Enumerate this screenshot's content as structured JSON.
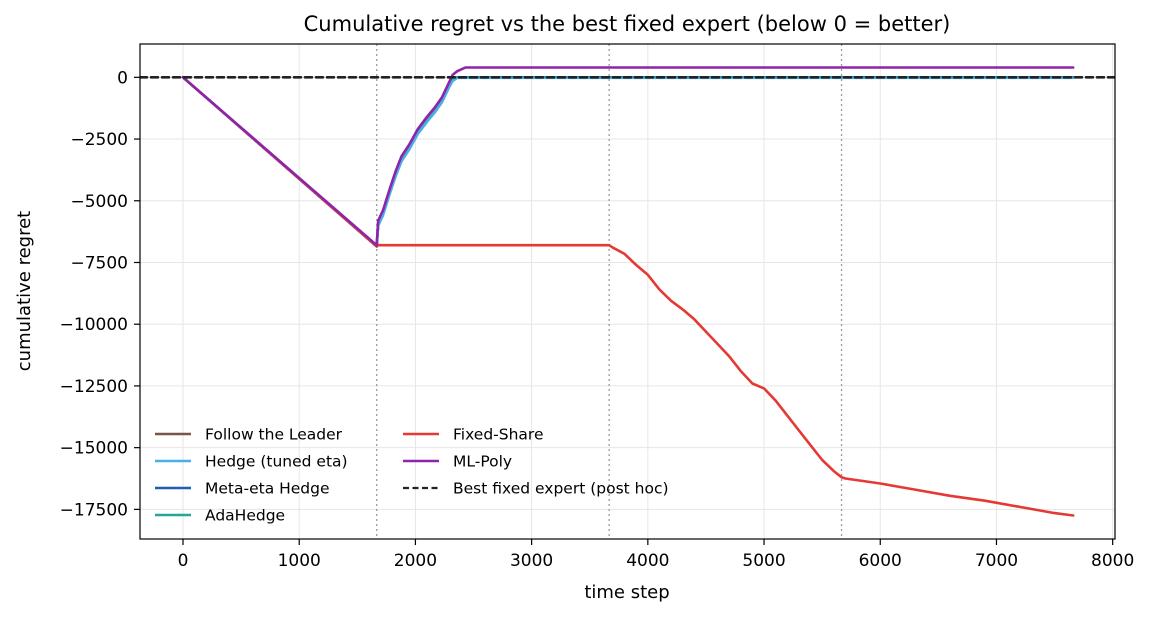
{
  "chart_data": {
    "type": "line",
    "title": "Cumulative regret vs the best fixed expert (below 0 = better)",
    "xlabel": "time step",
    "ylabel": "cumulative regret",
    "xlim": [
      -370,
      8020
    ],
    "ylim": [
      -18700,
      1350
    ],
    "xticks": [
      0,
      1000,
      2000,
      3000,
      4000,
      5000,
      6000,
      7000,
      8000
    ],
    "xtick_labels": [
      "0",
      "1000",
      "2000",
      "3000",
      "4000",
      "5000",
      "6000",
      "7000",
      "8000"
    ],
    "yticks": [
      0,
      -2500,
      -5000,
      -7500,
      -10000,
      -12500,
      -15000,
      -17500
    ],
    "ytick_labels": [
      "0",
      "−2500",
      "−5000",
      "−7500",
      "−10000",
      "−12500",
      "−15000",
      "−17500"
    ],
    "grid": true,
    "legend_position": "lower-left",
    "vertical_lines": [
      1667,
      3667,
      5667
    ],
    "series": [
      {
        "name": "Follow the Leader",
        "color": "#795548",
        "x": [
          0,
          1667,
          1680,
          1720,
          1780,
          1830,
          1880,
          1950,
          2020,
          2100,
          2170,
          2230,
          2290,
          2320,
          2360,
          2400,
          7660
        ],
        "y": [
          0,
          -6850,
          -5900,
          -5500,
          -4600,
          -3900,
          -3300,
          -2800,
          -2200,
          -1700,
          -1300,
          -900,
          -350,
          -100,
          0,
          0,
          0
        ]
      },
      {
        "name": "Hedge (tuned eta)",
        "color": "#4ab0e3",
        "x": [
          0,
          1667,
          1680,
          1720,
          1780,
          1830,
          1880,
          1950,
          2020,
          2100,
          2170,
          2230,
          2290,
          2320,
          2360,
          2400,
          7660
        ],
        "y": [
          0,
          -6850,
          -6000,
          -5600,
          -4700,
          -4000,
          -3400,
          -2900,
          -2300,
          -1800,
          -1400,
          -1000,
          -400,
          -150,
          -20,
          -20,
          -20
        ]
      },
      {
        "name": "Meta-eta Hedge",
        "color": "#1f5fb0",
        "x": [
          0,
          1667,
          1680,
          1720,
          1780,
          1830,
          1880,
          1950,
          2020,
          2100,
          2170,
          2230,
          2290,
          2320,
          2360,
          2400,
          7660
        ],
        "y": [
          0,
          -6850,
          -5900,
          -5500,
          -4600,
          -3900,
          -3300,
          -2800,
          -2200,
          -1700,
          -1300,
          -900,
          -350,
          -100,
          0,
          0,
          0
        ]
      },
      {
        "name": "AdaHedge",
        "color": "#26a69a",
        "x": [
          0,
          1667,
          1680,
          1720,
          1780,
          1830,
          1880,
          1950,
          2020,
          2100,
          2170,
          2230,
          2290,
          2320,
          2360,
          2400,
          7660
        ],
        "y": [
          0,
          -6850,
          -5950,
          -5550,
          -4650,
          -3950,
          -3350,
          -2850,
          -2250,
          -1750,
          -1350,
          -950,
          -380,
          -120,
          -10,
          -10,
          -10
        ]
      },
      {
        "name": "Fixed-Share",
        "color": "#e53935",
        "x": [
          0,
          1667,
          1680,
          3667,
          3700,
          3800,
          3900,
          4000,
          4100,
          4200,
          4300,
          4400,
          4500,
          4600,
          4700,
          4800,
          4900,
          5000,
          5100,
          5200,
          5300,
          5400,
          5500,
          5600,
          5667,
          5700,
          6000,
          6300,
          6600,
          6900,
          7200,
          7500,
          7660
        ],
        "y": [
          0,
          -6850,
          -6800,
          -6800,
          -6900,
          -7150,
          -7600,
          -8000,
          -8600,
          -9050,
          -9400,
          -9800,
          -10300,
          -10800,
          -11300,
          -11900,
          -12400,
          -12600,
          -13100,
          -13700,
          -14300,
          -14900,
          -15500,
          -15950,
          -16200,
          -16250,
          -16450,
          -16700,
          -16950,
          -17150,
          -17400,
          -17650,
          -17750
        ]
      },
      {
        "name": "ML-Poly",
        "color": "#8e24aa",
        "x": [
          0,
          1667,
          1680,
          1720,
          1780,
          1830,
          1880,
          1950,
          2020,
          2100,
          2170,
          2230,
          2290,
          2320,
          2360,
          2430,
          7660
        ],
        "y": [
          0,
          -6800,
          -5800,
          -5400,
          -4500,
          -3800,
          -3200,
          -2700,
          -2100,
          -1600,
          -1200,
          -800,
          -200,
          100,
          250,
          400,
          400
        ]
      },
      {
        "name": "Best fixed expert (post hoc)",
        "color": "#222222",
        "dashed": true,
        "x": [
          -370,
          8020
        ],
        "y": [
          0,
          0
        ]
      }
    ]
  }
}
